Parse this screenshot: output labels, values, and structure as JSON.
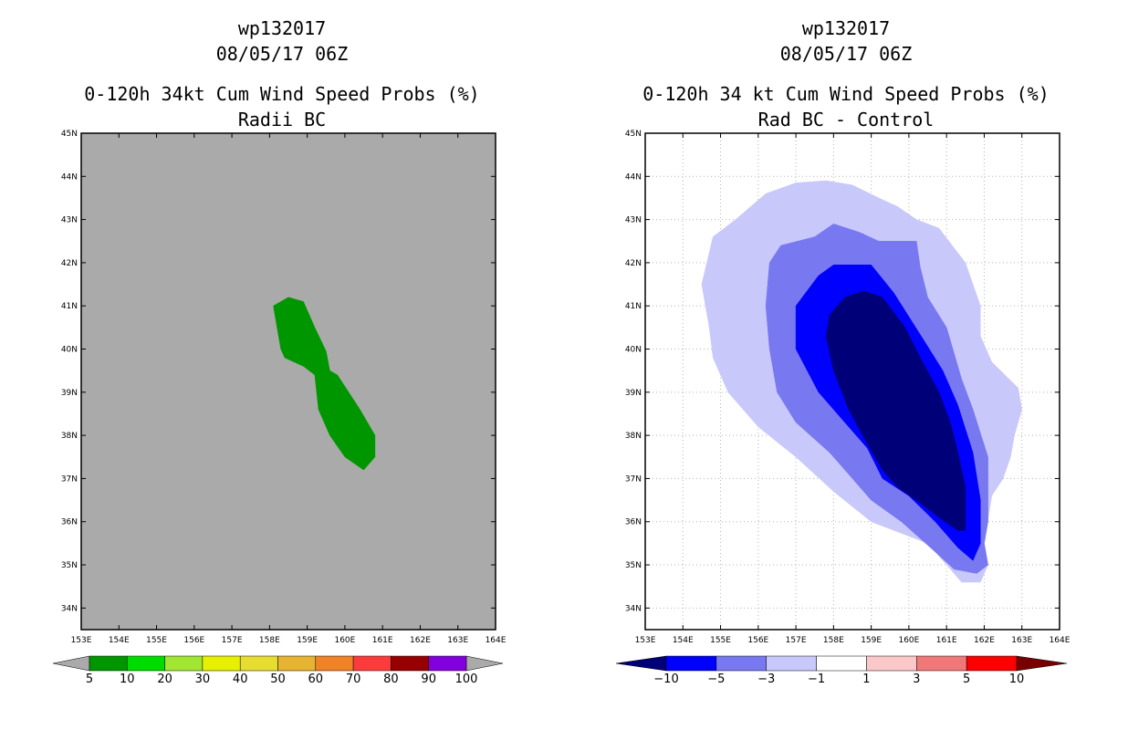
{
  "chart_data": [
    {
      "type": "contour-map",
      "storm_id": "wp132017",
      "datetime": "08/05/17 06Z",
      "title": "0-120h 34kt Cum Wind Speed Probs (%)",
      "subtitle": "Radii BC",
      "lon_labels": [
        "153E",
        "154E",
        "155E",
        "156E",
        "157E",
        "158E",
        "159E",
        "160E",
        "161E",
        "162E",
        "163E",
        "164E"
      ],
      "lat_labels": [
        "34N",
        "35N",
        "36N",
        "37N",
        "38N",
        "39N",
        "40N",
        "41N",
        "42N",
        "43N",
        "44N",
        "45N"
      ],
      "lon_range": [
        153,
        164
      ],
      "lat_range": [
        33.5,
        45
      ],
      "grid": false,
      "background_color": "#aaaaaa",
      "contours": [
        {
          "level": "5-10",
          "color": "#009600",
          "lonlat": [
            [
              158.1,
              41.0
            ],
            [
              158.5,
              41.2
            ],
            [
              158.9,
              41.1
            ],
            [
              159.2,
              40.5
            ],
            [
              159.5,
              39.95
            ],
            [
              159.6,
              39.5
            ],
            [
              159.8,
              39.4
            ],
            [
              160.4,
              38.6
            ],
            [
              160.8,
              38.0
            ],
            [
              160.8,
              37.5
            ],
            [
              160.5,
              37.2
            ],
            [
              160.0,
              37.5
            ],
            [
              159.6,
              38.0
            ],
            [
              159.3,
              38.6
            ],
            [
              159.2,
              39.4
            ],
            [
              158.9,
              39.6
            ],
            [
              158.4,
              39.8
            ],
            [
              158.3,
              40.0
            ]
          ]
        }
      ],
      "colorbar": {
        "labels": [
          "5",
          "10",
          "20",
          "30",
          "40",
          "50",
          "60",
          "70",
          "80",
          "90",
          "100"
        ],
        "colors": [
          "#009600",
          "#00dc00",
          "#a0e632",
          "#e6f000",
          "#e6dc32",
          "#e6b432",
          "#f08228",
          "#fa3c3c",
          "#960000",
          "#8200dc"
        ],
        "under_color": "#aaaaaa",
        "over_color": "#aaaaaa"
      }
    },
    {
      "type": "contour-map",
      "storm_id": "wp132017",
      "datetime": "08/05/17 06Z",
      "title": "0-120h 34 kt Cum Wind Speed Probs (%)",
      "subtitle": "Rad BC - Control",
      "lon_labels": [
        "153E",
        "154E",
        "155E",
        "156E",
        "157E",
        "158E",
        "159E",
        "160E",
        "161E",
        "162E",
        "163E",
        "164E"
      ],
      "lat_labels": [
        "34N",
        "35N",
        "36N",
        "37N",
        "38N",
        "39N",
        "40N",
        "41N",
        "42N",
        "43N",
        "44N",
        "45N"
      ],
      "lon_range": [
        153,
        164
      ],
      "lat_range": [
        33.5,
        45
      ],
      "grid": true,
      "contours": [
        {
          "level": "-3 to -1",
          "color": "#c8c8fa",
          "lonlat": [
            [
              154.5,
              41.5
            ],
            [
              154.8,
              42.6
            ],
            [
              155.4,
              43.0
            ],
            [
              156.2,
              43.6
            ],
            [
              157.0,
              43.85
            ],
            [
              157.8,
              43.9
            ],
            [
              158.5,
              43.8
            ],
            [
              159.2,
              43.5
            ],
            [
              159.7,
              43.3
            ],
            [
              160.2,
              43.0
            ],
            [
              160.8,
              42.8
            ],
            [
              161.5,
              42.0
            ],
            [
              161.9,
              41.0
            ],
            [
              161.9,
              40.3
            ],
            [
              162.2,
              39.7
            ],
            [
              162.9,
              39.1
            ],
            [
              163.0,
              38.6
            ],
            [
              162.8,
              38.0
            ],
            [
              162.7,
              37.5
            ],
            [
              162.5,
              37.0
            ],
            [
              162.2,
              36.6
            ],
            [
              162.0,
              35.5
            ],
            [
              162.1,
              35.0
            ],
            [
              161.9,
              34.6
            ],
            [
              161.4,
              34.6
            ],
            [
              161.0,
              35.0
            ],
            [
              160.5,
              35.5
            ],
            [
              159.0,
              36.0
            ],
            [
              158.0,
              36.7
            ],
            [
              157.0,
              37.5
            ],
            [
              156.0,
              38.2
            ],
            [
              155.2,
              39.0
            ],
            [
              154.8,
              39.8
            ],
            [
              154.7,
              40.5
            ]
          ]
        },
        {
          "level": "-5 to -3",
          "color": "#7878f0",
          "lonlat": [
            [
              156.3,
              42.0
            ],
            [
              156.6,
              42.4
            ],
            [
              157.5,
              42.6
            ],
            [
              158.0,
              42.9
            ],
            [
              158.7,
              42.7
            ],
            [
              159.2,
              42.5
            ],
            [
              160.2,
              42.5
            ],
            [
              160.3,
              41.9
            ],
            [
              160.5,
              41.2
            ],
            [
              161.0,
              40.5
            ],
            [
              161.4,
              39.3
            ],
            [
              161.7,
              38.6
            ],
            [
              162.1,
              37.5
            ],
            [
              162.1,
              36.0
            ],
            [
              162.0,
              35.5
            ],
            [
              162.1,
              35.0
            ],
            [
              161.8,
              34.8
            ],
            [
              161.2,
              34.9
            ],
            [
              160.7,
              35.3
            ],
            [
              159.8,
              36.0
            ],
            [
              159.0,
              36.5
            ],
            [
              158.5,
              37.0
            ],
            [
              157.9,
              37.6
            ],
            [
              157.0,
              38.3
            ],
            [
              156.5,
              39.0
            ],
            [
              156.3,
              40.0
            ],
            [
              156.2,
              41.0
            ]
          ]
        },
        {
          "level": "-10 to -5",
          "color": "#0000ff",
          "lonlat": [
            [
              157.0,
              41.0
            ],
            [
              157.6,
              41.7
            ],
            [
              158.0,
              41.95
            ],
            [
              159.0,
              41.95
            ],
            [
              159.6,
              41.3
            ],
            [
              160.4,
              40.2
            ],
            [
              160.9,
              39.5
            ],
            [
              161.3,
              38.7
            ],
            [
              161.7,
              37.6
            ],
            [
              161.9,
              36.5
            ],
            [
              161.9,
              35.5
            ],
            [
              161.7,
              35.1
            ],
            [
              161.3,
              35.4
            ],
            [
              160.7,
              36.0
            ],
            [
              160.0,
              36.6
            ],
            [
              159.3,
              37.0
            ],
            [
              158.9,
              37.7
            ],
            [
              158.3,
              38.3
            ],
            [
              157.6,
              39.0
            ],
            [
              157.0,
              40.0
            ]
          ]
        },
        {
          "level": "< -10",
          "color": "#000078",
          "lonlat": [
            [
              157.8,
              40.3
            ],
            [
              157.9,
              40.8
            ],
            [
              158.3,
              41.2
            ],
            [
              158.8,
              41.35
            ],
            [
              159.3,
              41.2
            ],
            [
              159.9,
              40.5
            ],
            [
              160.3,
              39.8
            ],
            [
              160.8,
              39.0
            ],
            [
              161.1,
              38.3
            ],
            [
              161.3,
              37.6
            ],
            [
              161.5,
              36.8
            ],
            [
              161.5,
              35.8
            ],
            [
              161.3,
              35.8
            ],
            [
              160.8,
              36.1
            ],
            [
              160.2,
              36.5
            ],
            [
              159.7,
              36.8
            ],
            [
              159.3,
              37.2
            ],
            [
              158.9,
              37.8
            ],
            [
              158.4,
              38.6
            ],
            [
              158.0,
              39.5
            ]
          ]
        }
      ],
      "colorbar": {
        "labels": [
          "-10",
          "-5",
          "-3",
          "-1",
          "1",
          "3",
          "5",
          "10"
        ],
        "colors": [
          "#000078",
          "#0000ff",
          "#7878f0",
          "#c8c8fa",
          "#ffffff",
          "#fac8c8",
          "#f07878",
          "#ff0000",
          "#780000"
        ]
      }
    }
  ]
}
